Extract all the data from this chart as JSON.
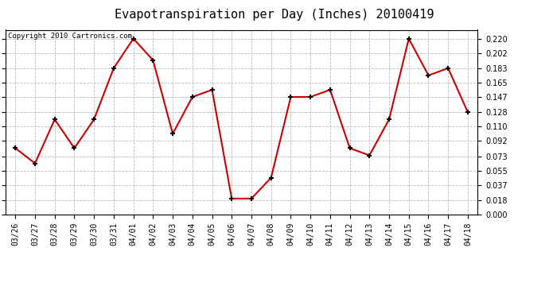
{
  "title": "Evapotranspiration per Day (Inches) 20100419",
  "copyright_text": "Copyright 2010 Cartronics.com",
  "x_labels": [
    "03/26",
    "03/27",
    "03/28",
    "03/29",
    "03/30",
    "03/31",
    "04/01",
    "04/02",
    "04/03",
    "04/04",
    "04/05",
    "04/06",
    "04/07",
    "04/08",
    "04/09",
    "04/10",
    "04/11",
    "04/12",
    "04/13",
    "04/14",
    "04/15",
    "04/16",
    "04/17",
    "04/18"
  ],
  "y_values": [
    0.083,
    0.064,
    0.119,
    0.083,
    0.119,
    0.183,
    0.22,
    0.193,
    0.101,
    0.147,
    0.156,
    0.02,
    0.02,
    0.046,
    0.147,
    0.147,
    0.156,
    0.083,
    0.074,
    0.119,
    0.22,
    0.174,
    0.183,
    0.128
  ],
  "line_color": "#cc0000",
  "marker": "+",
  "marker_color": "#000000",
  "marker_size": 5,
  "background_color": "#ffffff",
  "plot_bg_color": "#ffffff",
  "grid_color": "#bbbbbb",
  "ylim": [
    0.0,
    0.231
  ],
  "yticks": [
    0.0,
    0.018,
    0.037,
    0.055,
    0.073,
    0.092,
    0.11,
    0.128,
    0.147,
    0.165,
    0.183,
    0.202,
    0.22
  ],
  "title_fontsize": 11,
  "copyright_fontsize": 6.5,
  "tick_fontsize": 7
}
